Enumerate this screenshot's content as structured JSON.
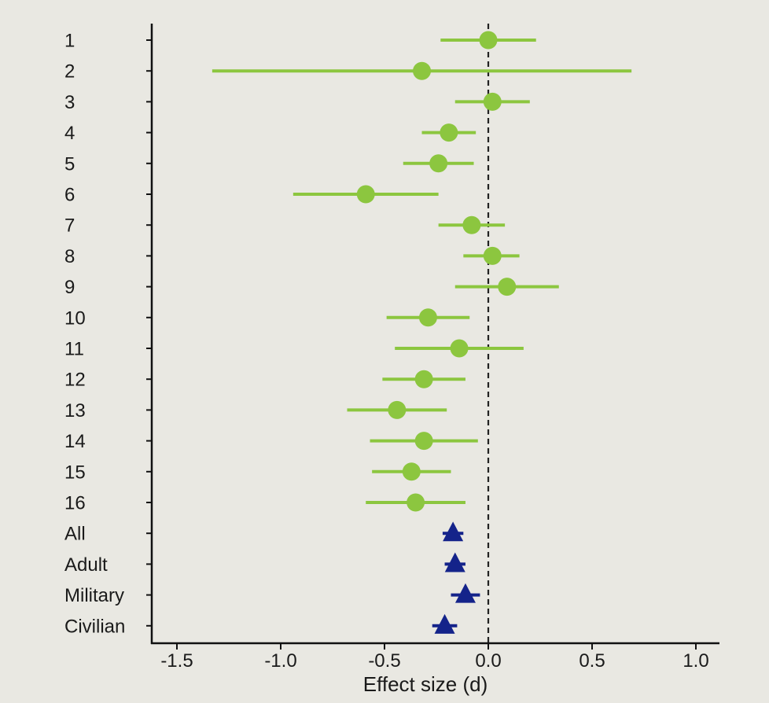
{
  "chart_data": {
    "type": "scatter",
    "subtype": "forest-plot",
    "title": "",
    "xlabel": "Effect size (d)",
    "ylabel": "",
    "xlim": [
      -1.6,
      1.1
    ],
    "xticks": [
      -1.5,
      -1.0,
      -0.5,
      0.0,
      0.5,
      1.0
    ],
    "xtick_labels": [
      "-1.5",
      "-1.0",
      "-0.5",
      "0.0",
      "0.5",
      "1.0"
    ],
    "reference_line": 0.0,
    "grid": false,
    "colors": {
      "study": "#8cc63f",
      "summary": "#14238a"
    },
    "studies": [
      {
        "label": "1",
        "estimate": 0.0,
        "lower": -0.23,
        "upper": 0.23
      },
      {
        "label": "2",
        "estimate": -0.32,
        "lower": -1.33,
        "upper": 0.69
      },
      {
        "label": "3",
        "estimate": 0.02,
        "lower": -0.16,
        "upper": 0.2
      },
      {
        "label": "4",
        "estimate": -0.19,
        "lower": -0.32,
        "upper": -0.06
      },
      {
        "label": "5",
        "estimate": -0.24,
        "lower": -0.41,
        "upper": -0.07
      },
      {
        "label": "6",
        "estimate": -0.59,
        "lower": -0.94,
        "upper": -0.24
      },
      {
        "label": "7",
        "estimate": -0.08,
        "lower": -0.24,
        "upper": 0.08
      },
      {
        "label": "8",
        "estimate": 0.02,
        "lower": -0.12,
        "upper": 0.15
      },
      {
        "label": "9",
        "estimate": 0.09,
        "lower": -0.16,
        "upper": 0.34
      },
      {
        "label": "10",
        "estimate": -0.29,
        "lower": -0.49,
        "upper": -0.09
      },
      {
        "label": "11",
        "estimate": -0.14,
        "lower": -0.45,
        "upper": 0.17
      },
      {
        "label": "12",
        "estimate": -0.31,
        "lower": -0.51,
        "upper": -0.11
      },
      {
        "label": "13",
        "estimate": -0.44,
        "lower": -0.68,
        "upper": -0.2
      },
      {
        "label": "14",
        "estimate": -0.31,
        "lower": -0.57,
        "upper": -0.05
      },
      {
        "label": "15",
        "estimate": -0.37,
        "lower": -0.56,
        "upper": -0.18
      },
      {
        "label": "16",
        "estimate": -0.35,
        "lower": -0.59,
        "upper": -0.11
      }
    ],
    "summaries": [
      {
        "label": "All",
        "estimate": -0.17,
        "lower": -0.22,
        "upper": -0.12
      },
      {
        "label": "Adult",
        "estimate": -0.16,
        "lower": -0.21,
        "upper": -0.11
      },
      {
        "label": "Military",
        "estimate": -0.11,
        "lower": -0.18,
        "upper": -0.04
      },
      {
        "label": "Civilian",
        "estimate": -0.21,
        "lower": -0.27,
        "upper": -0.15
      }
    ]
  }
}
